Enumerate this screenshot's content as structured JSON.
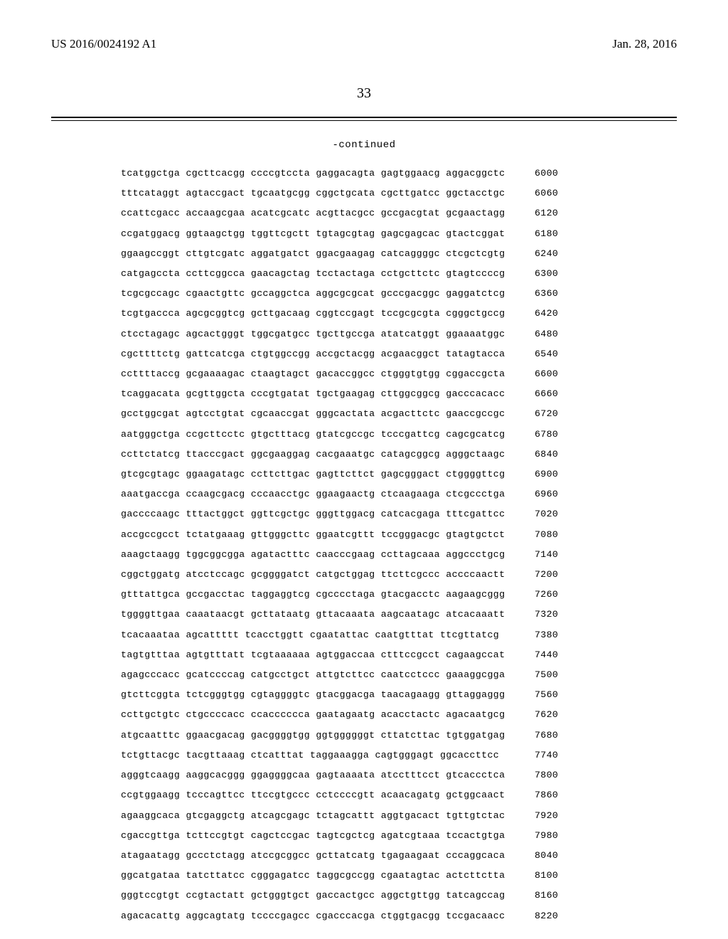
{
  "header": {
    "pubNumber": "US 2016/0024192 A1",
    "pubDate": "Jan. 28, 2016"
  },
  "pageNumber": "33",
  "continuedLabel": "-continued",
  "sequence": {
    "rows": [
      {
        "b": [
          "tcatggctga",
          "cgcttcacgg",
          "ccccgtccta",
          "gaggacagta",
          "gagtggaacg",
          "aggacggctc"
        ],
        "n": "6000"
      },
      {
        "b": [
          "tttcataggt",
          "agtaccgact",
          "tgcaatgcgg",
          "cggctgcata",
          "cgcttgatcc",
          "ggctacctgc"
        ],
        "n": "6060"
      },
      {
        "b": [
          "ccattcgacc",
          "accaagcgaa",
          "acatcgcatc",
          "acgttacgcc",
          "gccgacgtat",
          "gcgaactagg"
        ],
        "n": "6120"
      },
      {
        "b": [
          "ccgatggacg",
          "ggtaagctgg",
          "tggttcgctt",
          "tgtagcgtag",
          "gagcgagcac",
          "gtactcggat"
        ],
        "n": "6180"
      },
      {
        "b": [
          "ggaagccggt",
          "cttgtcgatc",
          "aggatgatct",
          "ggacgaagag",
          "catcaggggc",
          "ctcgctcgtg"
        ],
        "n": "6240"
      },
      {
        "b": [
          "catgagccta",
          "ccttcggcca",
          "gaacagctag",
          "tcctactaga",
          "cctgcttctc",
          "gtagtccccg"
        ],
        "n": "6300"
      },
      {
        "b": [
          "tcgcgccagc",
          "cgaactgttc",
          "gccaggctca",
          "aggcgcgcat",
          "gcccgacggc",
          "gaggatctcg"
        ],
        "n": "6360"
      },
      {
        "b": [
          "tcgtgaccca",
          "agcgcggtcg",
          "gcttgacaag",
          "cggtccgagt",
          "tccgcgcgta",
          "cgggctgccg"
        ],
        "n": "6420"
      },
      {
        "b": [
          "ctcctagagc",
          "agcactgggt",
          "tggcgatgcc",
          "tgcttgccga",
          "atatcatggt",
          "ggaaaatggc"
        ],
        "n": "6480"
      },
      {
        "b": [
          "cgcttttctg",
          "gattcatcga",
          "ctgtggccgg",
          "accgctacgg",
          "acgaacggct",
          "tatagtacca"
        ],
        "n": "6540"
      },
      {
        "b": [
          "ccttttaccg",
          "gcgaaaagac",
          "ctaagtagct",
          "gacaccggcc",
          "ctgggtgtgg",
          "cggaccgcta"
        ],
        "n": "6600"
      },
      {
        "b": [
          "tcaggacata",
          "gcgttggcta",
          "cccgtgatat",
          "tgctgaagag",
          "cttggcggcg",
          "gacccacacc"
        ],
        "n": "6660"
      },
      {
        "b": [
          "gcctggcgat",
          "agtcctgtat",
          "cgcaaccgat",
          "gggcactata",
          "acgacttctc",
          "gaaccgccgc"
        ],
        "n": "6720"
      },
      {
        "b": [
          "aatgggctga",
          "ccgcttcctc",
          "gtgctttacg",
          "gtatcgccgc",
          "tcccgattcg",
          "cagcgcatcg"
        ],
        "n": "6780"
      },
      {
        "b": [
          "ccttctatcg",
          "ttacccgact",
          "ggcgaaggag",
          "cacgaaatgc",
          "catagcggcg",
          "agggctaagc"
        ],
        "n": "6840"
      },
      {
        "b": [
          "gtcgcgtagc",
          "ggaagatagc",
          "ccttcttgac",
          "gagttcttct",
          "gagcgggact",
          "ctggggttcg"
        ],
        "n": "6900"
      },
      {
        "b": [
          "aaatgaccga",
          "ccaagcgacg",
          "cccaacctgc",
          "ggaagaactg",
          "ctcaagaaga",
          "ctcgccctga"
        ],
        "n": "6960"
      },
      {
        "b": [
          "gaccccaagc",
          "tttactggct",
          "ggttcgctgc",
          "gggttggacg",
          "catcacgaga",
          "tttcgattcc"
        ],
        "n": "7020"
      },
      {
        "b": [
          "accgccgcct",
          "tctatgaaag",
          "gttgggcttc",
          "ggaatcgttt",
          "tccgggacgc",
          "gtagtgctct"
        ],
        "n": "7080"
      },
      {
        "b": [
          "aaagctaagg",
          "tggcggcgga",
          "agatactttc",
          "caacccgaag",
          "ccttagcaaa",
          "aggccctgcg"
        ],
        "n": "7140"
      },
      {
        "b": [
          "cggctggatg",
          "atcctccagc",
          "gcggggatct",
          "catgctggag",
          "ttcttcgccc",
          "accccaactt"
        ],
        "n": "7200"
      },
      {
        "b": [
          "gtttattgca",
          "gccgacctac",
          "taggaggtcg",
          "cgcccctaga",
          "gtacgacctc",
          "aagaagcggg"
        ],
        "n": "7260"
      },
      {
        "b": [
          "tggggttgaa",
          "caaataacgt",
          "gcttataatg",
          "gttacaaata",
          "aagcaatagc",
          "atcacaaatt"
        ],
        "n": "7320"
      },
      {
        "b": [
          "tcacaaataa",
          "agcattttt",
          "tcacctggtt",
          "cgaatattac",
          "caatgtttat",
          "ttcgttatcg"
        ],
        "n": "7380"
      },
      {
        "b": [
          "tagtgtttaa",
          "agtgtttatt",
          "tcgtaaaaaa",
          "agtggaccaa",
          "ctttccgcct",
          "cagaagccat"
        ],
        "n": "7440"
      },
      {
        "b": [
          "agagcccacc",
          "gcatccccag",
          "catgcctgct",
          "attgtcttcc",
          "caatcctccc",
          "gaaaggcgga"
        ],
        "n": "7500"
      },
      {
        "b": [
          "gtcttcggta",
          "tctcgggtgg",
          "cgtaggggtc",
          "gtacggacga",
          "taacagaagg",
          "gttaggaggg"
        ],
        "n": "7560"
      },
      {
        "b": [
          "ccttgctgtc",
          "ctgccccacc",
          "ccacccccca",
          "gaatagaatg",
          "acacctactc",
          "agacaatgcg"
        ],
        "n": "7620"
      },
      {
        "b": [
          "atgcaatttc",
          "ggaacgacag",
          "gacggggtgg",
          "ggtggggggt",
          "cttatcttac",
          "tgtggatgag"
        ],
        "n": "7680"
      },
      {
        "b": [
          "tctgttacgc",
          "tacgttaaag",
          "ctcatttat",
          "taggaaagga",
          "cagtgggagt",
          "ggcaccttcc"
        ],
        "n": "7740"
      },
      {
        "b": [
          "agggtcaagg",
          "aaggcacggg",
          "ggaggggcaa",
          "gagtaaaata",
          "atcctttcct",
          "gtcaccctca"
        ],
        "n": "7800"
      },
      {
        "b": [
          "ccgtggaagg",
          "tcccagttcc",
          "ttccgtgccc",
          "cctccccgtt",
          "acaacagatg",
          "gctggcaact"
        ],
        "n": "7860"
      },
      {
        "b": [
          "agaaggcaca",
          "gtcgaggctg",
          "atcagcgagc",
          "tctagcattt",
          "aggtgacact",
          "tgttgtctac"
        ],
        "n": "7920"
      },
      {
        "b": [
          "cgaccgttga",
          "tcttccgtgt",
          "cagctccgac",
          "tagtcgctcg",
          "agatcgtaaa",
          "tccactgtga"
        ],
        "n": "7980"
      },
      {
        "b": [
          "atagaatagg",
          "gccctctagg",
          "atccgcggcc",
          "gcttatcatg",
          "tgagaagaat",
          "cccaggcaca"
        ],
        "n": "8040"
      },
      {
        "b": [
          "ggcatgataa",
          "tatcttatcc",
          "cgggagatcc",
          "taggcgccgg",
          "cgaatagtac",
          "actcttctta"
        ],
        "n": "8100"
      },
      {
        "b": [
          "gggtccgtgt",
          "ccgtactatt",
          "gctgggtgct",
          "gaccactgcc",
          "aggctgttgg",
          "tatcagccag"
        ],
        "n": "8160"
      },
      {
        "b": [
          "agacacattg",
          "aggcagtatg",
          "tccccgagcc",
          "cgacccacga",
          "ctggtgacgg",
          "tccgacaacc"
        ],
        "n": "8220"
      }
    ]
  },
  "style": {
    "bgColor": "#ffffff",
    "textColor": "#000000",
    "monoFont": "Courier New",
    "serifFont": "Times New Roman",
    "seqFontSize": 13.2,
    "seqLineHeight": 28.2,
    "headerFontSize": 17,
    "pageNumFontSize": 20
  }
}
